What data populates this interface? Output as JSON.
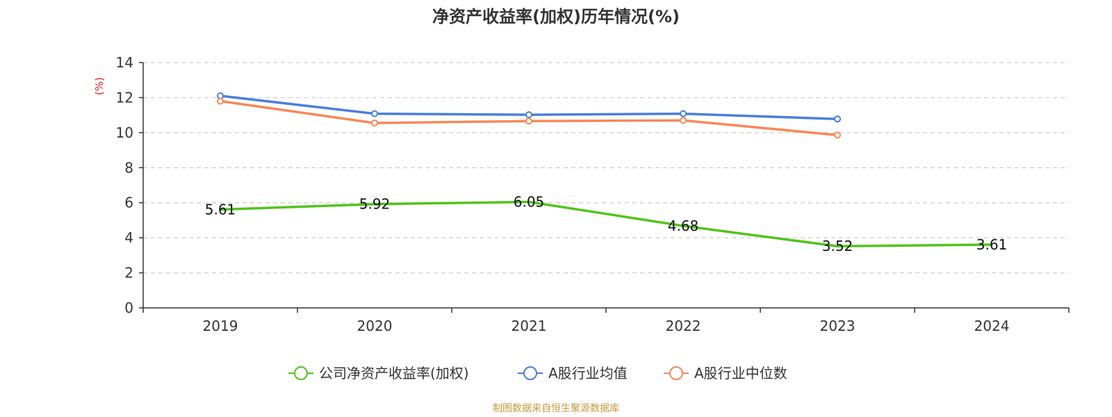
{
  "chart_data": {
    "type": "line",
    "title": "净资产收益率(加权)历年情况(%)",
    "ylabel": "(%)",
    "xlabel": "",
    "categories": [
      "2019",
      "2020",
      "2021",
      "2022",
      "2023",
      "2024"
    ],
    "ylim": [
      0,
      14
    ],
    "yticks": [
      0,
      2,
      4,
      6,
      8,
      10,
      12,
      14
    ],
    "grid": true,
    "legend_position": "bottom",
    "series": [
      {
        "name": "公司净资产收益率(加权)",
        "color": "#52c41a",
        "values": [
          5.61,
          5.92,
          6.05,
          4.68,
          3.52,
          3.61
        ],
        "show_labels": true
      },
      {
        "name": "A股行业均值",
        "color": "#4a7fdc",
        "values": [
          12.1,
          11.08,
          11.02,
          11.08,
          10.78,
          null
        ],
        "show_labels": false
      },
      {
        "name": "A股行业中位数",
        "color": "#f7885a",
        "values": [
          11.8,
          10.55,
          10.66,
          10.7,
          9.86,
          null
        ],
        "show_labels": false
      }
    ]
  },
  "footer": {
    "source": "制图数据来自恒生聚源数据库"
  }
}
